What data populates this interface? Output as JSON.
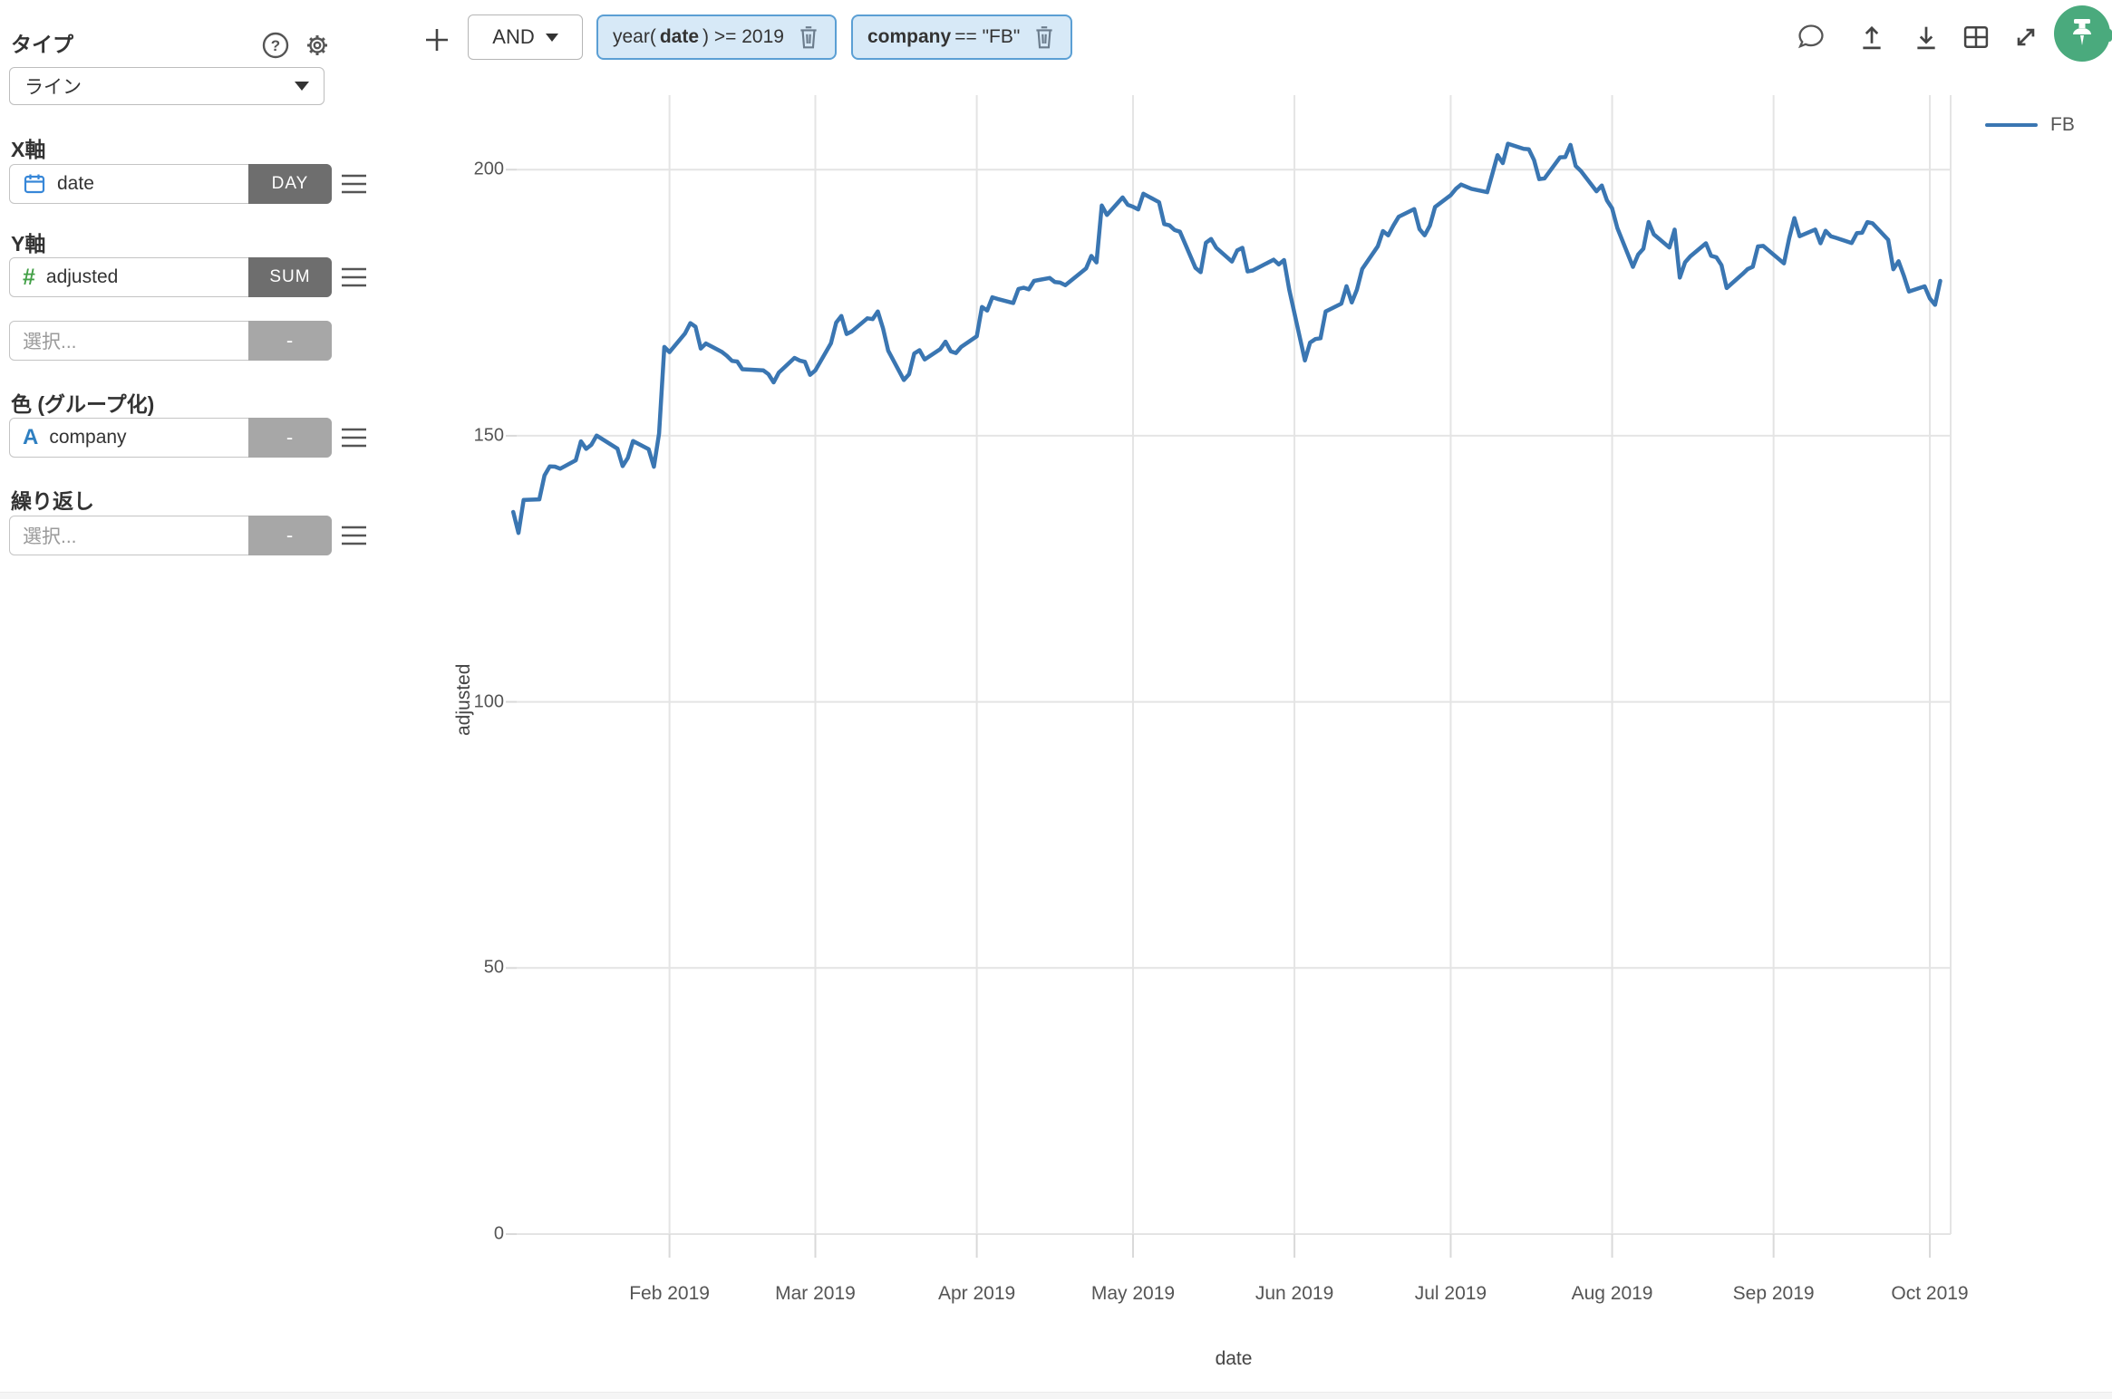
{
  "sidebar": {
    "type_label": "タイプ",
    "type_value": "ライン",
    "x_axis_label": "X軸",
    "x_field": "date",
    "x_aggregation": "DAY",
    "y_axis_label": "Y軸",
    "y_field": "adjusted",
    "y_aggregation": "SUM",
    "y2_placeholder": "選択...",
    "y2_aggregation": "-",
    "color_group_label": "色 (グループ化)",
    "color_field": "company",
    "color_aggregation": "-",
    "repeat_label": "繰り返し",
    "repeat_placeholder": "選択...",
    "repeat_aggregation": "-"
  },
  "filter_bar": {
    "add_button": "+",
    "logic_operator": "AND",
    "pill1": {
      "pre": "year(",
      "field": "date",
      "post": ") >= 2019"
    },
    "pill2": {
      "pre": "",
      "field": "company",
      "post": " == \"FB\""
    }
  },
  "toolbar_icons": [
    "comment-bubble",
    "upload",
    "download",
    "table-view",
    "fullscreen-expand",
    "pin"
  ],
  "colors": {
    "line": "#3a76b2",
    "pill_bg": "#d7e9f7",
    "pill_border": "#5b9fd4",
    "agg_dark": "#6e6e6e",
    "agg_muted": "#a7a7a7",
    "pin_green": "#4aaa7d",
    "gridline": "#e4e4e4"
  },
  "chart_data": {
    "type": "line",
    "title": "",
    "xlabel": "date",
    "ylabel": "adjusted",
    "grid": true,
    "legend_position": "top-right",
    "y_ticks": [
      0,
      50,
      100,
      150,
      200
    ],
    "ylim": [
      0,
      214
    ],
    "x_range": [
      "2019-01-01",
      "2019-10-05"
    ],
    "x_ticks": [
      {
        "date": "2019-02-01",
        "label": "Feb 2019"
      },
      {
        "date": "2019-03-01",
        "label": "Mar 2019"
      },
      {
        "date": "2019-04-01",
        "label": "Apr 2019"
      },
      {
        "date": "2019-05-01",
        "label": "May 2019"
      },
      {
        "date": "2019-06-01",
        "label": "Jun 2019"
      },
      {
        "date": "2019-07-01",
        "label": "Jul 2019"
      },
      {
        "date": "2019-08-01",
        "label": "Aug 2019"
      },
      {
        "date": "2019-09-01",
        "label": "Sep 2019"
      },
      {
        "date": "2019-10-01",
        "label": "Oct 2019"
      }
    ],
    "series": [
      {
        "name": "FB",
        "color": "#3a76b2",
        "dates": [
          "2019-01-02",
          "2019-01-03",
          "2019-01-04",
          "2019-01-07",
          "2019-01-08",
          "2019-01-09",
          "2019-01-10",
          "2019-01-11",
          "2019-01-14",
          "2019-01-15",
          "2019-01-16",
          "2019-01-17",
          "2019-01-18",
          "2019-01-22",
          "2019-01-23",
          "2019-01-24",
          "2019-01-25",
          "2019-01-28",
          "2019-01-29",
          "2019-01-30",
          "2019-01-31",
          "2019-02-01",
          "2019-02-04",
          "2019-02-05",
          "2019-02-06",
          "2019-02-07",
          "2019-02-08",
          "2019-02-11",
          "2019-02-12",
          "2019-02-13",
          "2019-02-14",
          "2019-02-15",
          "2019-02-19",
          "2019-02-20",
          "2019-02-21",
          "2019-02-22",
          "2019-02-25",
          "2019-02-26",
          "2019-02-27",
          "2019-02-28",
          "2019-03-01",
          "2019-03-04",
          "2019-03-05",
          "2019-03-06",
          "2019-03-07",
          "2019-03-08",
          "2019-03-11",
          "2019-03-12",
          "2019-03-13",
          "2019-03-14",
          "2019-03-15",
          "2019-03-18",
          "2019-03-19",
          "2019-03-20",
          "2019-03-21",
          "2019-03-22",
          "2019-03-25",
          "2019-03-26",
          "2019-03-27",
          "2019-03-28",
          "2019-03-29",
          "2019-04-01",
          "2019-04-02",
          "2019-04-03",
          "2019-04-04",
          "2019-04-05",
          "2019-04-08",
          "2019-04-09",
          "2019-04-10",
          "2019-04-11",
          "2019-04-12",
          "2019-04-15",
          "2019-04-16",
          "2019-04-17",
          "2019-04-18",
          "2019-04-22",
          "2019-04-23",
          "2019-04-24",
          "2019-04-25",
          "2019-04-26",
          "2019-04-29",
          "2019-04-30",
          "2019-05-01",
          "2019-05-02",
          "2019-05-03",
          "2019-05-06",
          "2019-05-07",
          "2019-05-08",
          "2019-05-09",
          "2019-05-10",
          "2019-05-13",
          "2019-05-14",
          "2019-05-15",
          "2019-05-16",
          "2019-05-17",
          "2019-05-20",
          "2019-05-21",
          "2019-05-22",
          "2019-05-23",
          "2019-05-24",
          "2019-05-28",
          "2019-05-29",
          "2019-05-30",
          "2019-05-31",
          "2019-06-03",
          "2019-06-04",
          "2019-06-05",
          "2019-06-06",
          "2019-06-07",
          "2019-06-10",
          "2019-06-11",
          "2019-06-12",
          "2019-06-13",
          "2019-06-14",
          "2019-06-17",
          "2019-06-18",
          "2019-06-19",
          "2019-06-20",
          "2019-06-21",
          "2019-06-24",
          "2019-06-25",
          "2019-06-26",
          "2019-06-27",
          "2019-06-28",
          "2019-07-01",
          "2019-07-02",
          "2019-07-03",
          "2019-07-05",
          "2019-07-08",
          "2019-07-09",
          "2019-07-10",
          "2019-07-11",
          "2019-07-12",
          "2019-07-15",
          "2019-07-16",
          "2019-07-17",
          "2019-07-18",
          "2019-07-19",
          "2019-07-22",
          "2019-07-23",
          "2019-07-24",
          "2019-07-25",
          "2019-07-26",
          "2019-07-29",
          "2019-07-30",
          "2019-07-31",
          "2019-08-01",
          "2019-08-02",
          "2019-08-05",
          "2019-08-06",
          "2019-08-07",
          "2019-08-08",
          "2019-08-09",
          "2019-08-12",
          "2019-08-13",
          "2019-08-14",
          "2019-08-15",
          "2019-08-16",
          "2019-08-19",
          "2019-08-20",
          "2019-08-21",
          "2019-08-22",
          "2019-08-23",
          "2019-08-26",
          "2019-08-27",
          "2019-08-28",
          "2019-08-29",
          "2019-08-30",
          "2019-09-03",
          "2019-09-04",
          "2019-09-05",
          "2019-09-06",
          "2019-09-09",
          "2019-09-10",
          "2019-09-11",
          "2019-09-12",
          "2019-09-13",
          "2019-09-16",
          "2019-09-17",
          "2019-09-18",
          "2019-09-19",
          "2019-09-20",
          "2019-09-23",
          "2019-09-24",
          "2019-09-25",
          "2019-09-26",
          "2019-09-27",
          "2019-09-30",
          "2019-10-01",
          "2019-10-02",
          "2019-10-03"
        ],
        "values": [
          135.68,
          131.74,
          137.95,
          138.05,
          142.53,
          144.23,
          144.2,
          143.8,
          145.39,
          148.95,
          147.54,
          148.3,
          150.04,
          147.57,
          144.3,
          145.83,
          149.01,
          147.47,
          144.19,
          150.42,
          166.69,
          165.71,
          169.25,
          171.16,
          170.49,
          166.38,
          167.33,
          165.79,
          165.04,
          164.07,
          163.95,
          162.5,
          162.29,
          161.57,
          160.04,
          161.89,
          164.62,
          164.13,
          163.9,
          161.45,
          162.28,
          167.37,
          171.26,
          172.51,
          169.13,
          169.6,
          172.07,
          171.92,
          173.37,
          170.17,
          165.98,
          160.47,
          161.57,
          165.44,
          166.08,
          164.34,
          166.29,
          167.68,
          165.87,
          165.55,
          166.69,
          168.7,
          174.2,
          173.54,
          176.02,
          175.72,
          174.95,
          177.58,
          177.82,
          177.51,
          179.1,
          179.65,
          178.87,
          178.78,
          178.28,
          181.44,
          183.78,
          182.58,
          193.26,
          191.49,
          194.78,
          193.4,
          193.03,
          192.53,
          195.47,
          193.88,
          189.77,
          189.54,
          188.65,
          188.34,
          181.54,
          180.73,
          186.27,
          186.99,
          185.3,
          182.72,
          184.82,
          185.32,
          180.87,
          181.06,
          183.09,
          182.19,
          183.01,
          177.47,
          164.15,
          167.5,
          168.17,
          168.33,
          173.35,
          174.82,
          178.1,
          175.04,
          177.47,
          181.33,
          185.6,
          188.47,
          187.66,
          189.5,
          191.14,
          192.6,
          188.84,
          187.66,
          189.5,
          193.0,
          195.21,
          196.4,
          197.2,
          196.4,
          195.76,
          199.21,
          202.73,
          201.23,
          204.87,
          203.91,
          203.84,
          201.8,
          198.22,
          198.36,
          202.32,
          202.36,
          204.66,
          200.71,
          199.75,
          195.94,
          197.03,
          194.23,
          192.73,
          189.02,
          181.73,
          184.06,
          185.14,
          190.16,
          187.85,
          185.37,
          188.74,
          179.71,
          182.59,
          183.7,
          186.17,
          183.81,
          183.55,
          182.04,
          177.75,
          180.36,
          181.3,
          181.76,
          185.57,
          185.67,
          182.39,
          187.14,
          190.9,
          187.49,
          188.76,
          186.17,
          188.49,
          187.47,
          187.19,
          186.22,
          188.08,
          188.14,
          190.14,
          189.93,
          186.82,
          181.28,
          182.8,
          180.11,
          177.1,
          178.08,
          175.81,
          174.6,
          179.1
        ]
      }
    ]
  }
}
